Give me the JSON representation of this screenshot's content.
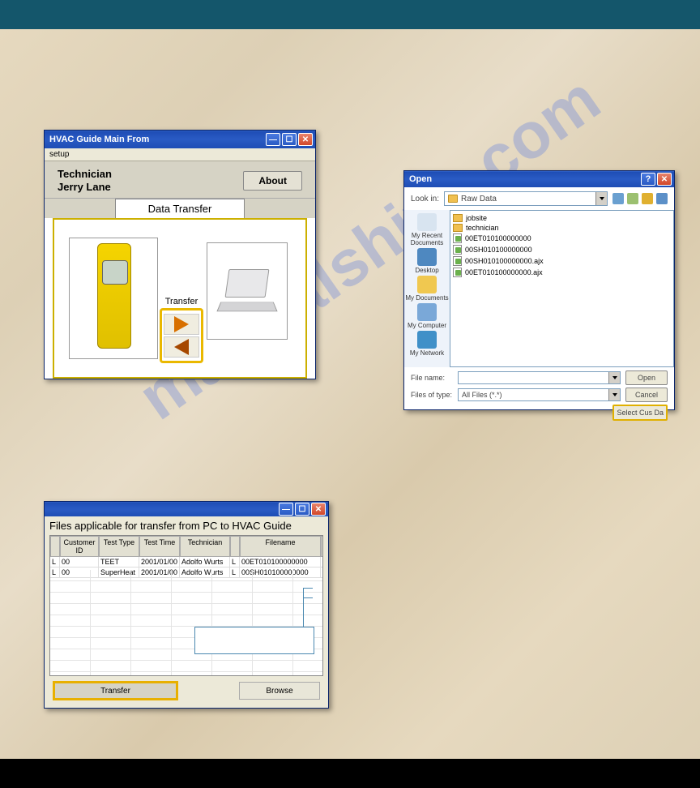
{
  "win1": {
    "title": "HVAC Guide Main From",
    "menu": "setup",
    "tech_label": "Technician",
    "tech_name": "Jerry Lane",
    "about": "About",
    "tab": "Data Transfer",
    "transfer_label": "Transfer",
    "highlight_color": "#eab800"
  },
  "win2": {
    "title": "Open",
    "lookin_label": "Look in:",
    "lookin_value": "Raw Data",
    "toolbar_icons": [
      {
        "name": "back-icon",
        "color": "#6aa0d0"
      },
      {
        "name": "up-icon",
        "color": "#9cc070"
      },
      {
        "name": "new-folder-icon",
        "color": "#e0b030"
      },
      {
        "name": "views-icon",
        "color": "#5c90c8"
      }
    ],
    "places": [
      {
        "name": "recent-docs-icon",
        "label": "My Recent Documents",
        "color": "#d8e4f0"
      },
      {
        "name": "desktop-icon",
        "label": "Desktop",
        "color": "#4e88c0"
      },
      {
        "name": "my-documents-icon",
        "label": "My Documents",
        "color": "#f0c850"
      },
      {
        "name": "my-computer-icon",
        "label": "My Computer",
        "color": "#7aa8d8"
      },
      {
        "name": "my-network-icon",
        "label": "My Network",
        "color": "#4090c8"
      }
    ],
    "files": [
      {
        "type": "folder",
        "name": "jobsite"
      },
      {
        "type": "folder",
        "name": "technician"
      },
      {
        "type": "file",
        "name": "00ET010100000000"
      },
      {
        "type": "file",
        "name": "00SH010100000000"
      },
      {
        "type": "file",
        "name": "00SH010100000000.ajx"
      },
      {
        "type": "file",
        "name": "00ET010100000000.ajx"
      }
    ],
    "filename_label": "File name:",
    "filename_value": "",
    "filetype_label": "Files of type:",
    "filetype_value": "All Files (*.*)",
    "open_btn": "Open",
    "cancel_btn": "Cancel",
    "select_btn": "Select Cus Da",
    "highlight_color": "#e0b000"
  },
  "win3": {
    "title2": "Files applicable for transfer from PC to HVAC Guide",
    "columns": [
      "",
      "Customer ID",
      "Test Type",
      "Test Time",
      "Technician",
      "",
      "Filename",
      ""
    ],
    "rows": [
      [
        "L",
        "00",
        "TEET",
        "2001/01/00",
        "Adolfo Wurts",
        "L",
        "00ET010100000000",
        ""
      ],
      [
        "L",
        "00",
        "SuperHeat",
        "2001/01/00",
        "Adolfo Wurts",
        "L",
        "00SH010100000000",
        ""
      ]
    ],
    "transfer_btn": "Transfer",
    "browse_btn": "Browse",
    "highlight_color": "#e8b000"
  },
  "watermark": {
    "text": "manualshive.com",
    "color": "rgba(100,130,220,0.35)",
    "angle_deg": -35
  }
}
